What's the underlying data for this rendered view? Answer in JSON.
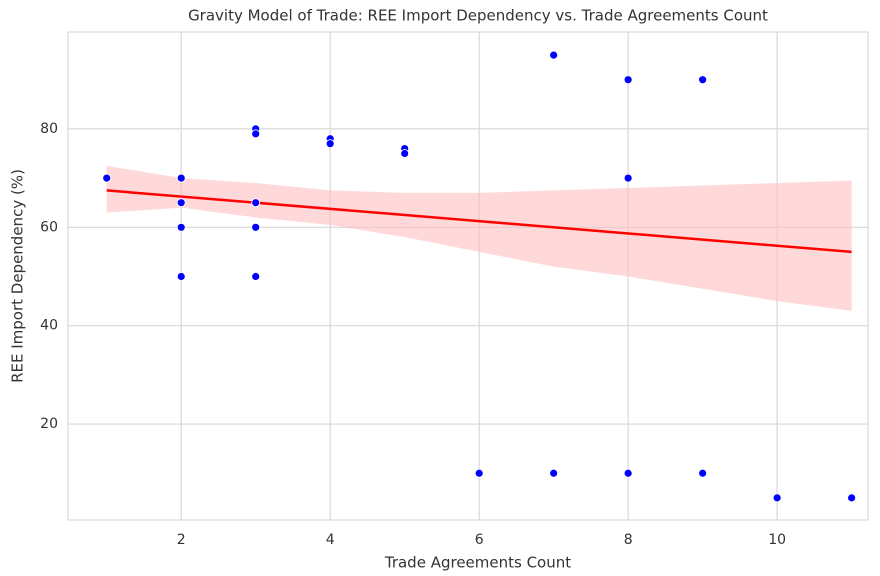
{
  "chart_data": {
    "type": "scatter",
    "title": "Gravity Model of Trade: REE Import Dependency vs. Trade Agreements Count",
    "x_label": "Trade Agreements Count",
    "y_label": "REE Import Dependency (%)",
    "x": [
      1,
      2,
      2,
      2,
      2,
      3,
      3,
      3,
      3,
      3,
      4,
      4,
      5,
      5,
      6,
      7,
      7,
      8,
      8,
      8,
      9,
      9,
      10,
      11
    ],
    "values": [
      70,
      70,
      65,
      60,
      50,
      80,
      79,
      65,
      60,
      50,
      78,
      77,
      76,
      75,
      10,
      95,
      10,
      90,
      70,
      10,
      90,
      10,
      5,
      5
    ],
    "color": "#0000ff",
    "regression": {
      "color": "#ff0000",
      "x": [
        1,
        11
      ],
      "values": [
        67.5,
        55
      ]
    },
    "confidence_band": {
      "color": "#ffc0c0",
      "x": [
        1,
        2,
        3,
        4,
        5,
        6,
        7,
        8,
        9,
        10,
        11
      ],
      "upper": [
        72.5,
        70,
        69,
        67.5,
        67,
        67,
        67.5,
        68,
        68.5,
        69,
        69.5
      ],
      "lower": [
        63,
        64,
        62,
        60.5,
        58,
        55,
        52,
        50,
        47.5,
        45,
        43
      ]
    },
    "xlim": [
      0.48,
      11.22
    ],
    "ylim": [
      0.5,
      99.7
    ],
    "xticks": [
      2,
      4,
      6,
      8,
      10
    ],
    "yticks": [
      20,
      40,
      60,
      80
    ],
    "grid": true
  }
}
